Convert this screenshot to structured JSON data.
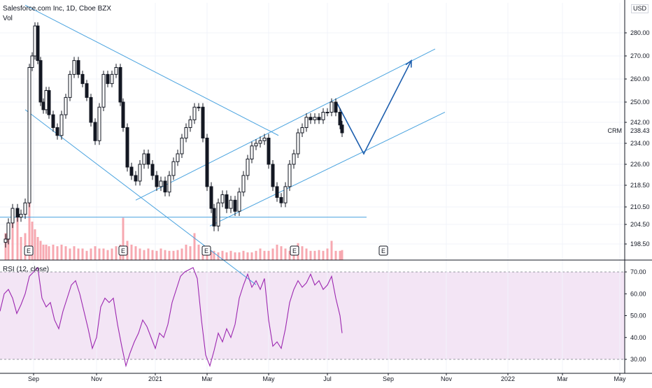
{
  "header": {
    "title": "Salesforce.com Inc, 1D, Cboe BZX",
    "volume_label": "Vol",
    "currency": "USD",
    "symbol": "CRM",
    "last_price": "238.43"
  },
  "rsi": {
    "label": "RSI (12, close)"
  },
  "earnings_marker": "E",
  "colors": {
    "candle": "#131722",
    "trendline": "#4aa3df",
    "projection": "#1e5fae",
    "rsi_line": "#9c27b0",
    "rsi_band": "#f3e5f5",
    "volume": "#f7a8b0"
  },
  "chart_data": [
    {
      "type": "candlestick",
      "title": "Salesforce.com Inc, 1D, Cboe BZX",
      "x_axis": {
        "ticks": [
          "Sep",
          "Nov",
          "2021",
          "Mar",
          "May",
          "Jul",
          "Sep",
          "Nov",
          "2022",
          "Mar",
          "May"
        ]
      },
      "y_axis": {
        "ticks": [
          198.5,
          204.5,
          210.5,
          218.5,
          226.0,
          234.0,
          242.0,
          250.0,
          260.0,
          270.0,
          280.0
        ],
        "tick_labels": [
          "198.50",
          "204.50",
          "210.50",
          "218.50",
          "226.00",
          "234.00",
          "242.00",
          "250.00",
          "260.00",
          "270.00",
          "280.00"
        ],
        "position": "right"
      },
      "closes": [
        {
          "x": 8,
          "y": 200
        },
        {
          "x": 12,
          "y": 205
        },
        {
          "x": 18,
          "y": 210
        },
        {
          "x": 25,
          "y": 207
        },
        {
          "x": 30,
          "y": 208
        },
        {
          "x": 36,
          "y": 212
        },
        {
          "x": 42,
          "y": 265
        },
        {
          "x": 46,
          "y": 270
        },
        {
          "x": 50,
          "y": 283
        },
        {
          "x": 54,
          "y": 268
        },
        {
          "x": 58,
          "y": 250
        },
        {
          "x": 62,
          "y": 247
        },
        {
          "x": 66,
          "y": 255
        },
        {
          "x": 70,
          "y": 245
        },
        {
          "x": 76,
          "y": 240
        },
        {
          "x": 82,
          "y": 237
        },
        {
          "x": 88,
          "y": 245
        },
        {
          "x": 94,
          "y": 252
        },
        {
          "x": 100,
          "y": 262
        },
        {
          "x": 106,
          "y": 268
        },
        {
          "x": 112,
          "y": 262
        },
        {
          "x": 118,
          "y": 258
        },
        {
          "x": 124,
          "y": 252
        },
        {
          "x": 130,
          "y": 242
        },
        {
          "x": 136,
          "y": 235
        },
        {
          "x": 142,
          "y": 248
        },
        {
          "x": 148,
          "y": 262
        },
        {
          "x": 154,
          "y": 258
        },
        {
          "x": 160,
          "y": 262
        },
        {
          "x": 166,
          "y": 265
        },
        {
          "x": 172,
          "y": 250
        },
        {
          "x": 176,
          "y": 240
        },
        {
          "x": 182,
          "y": 225
        },
        {
          "x": 188,
          "y": 222
        },
        {
          "x": 194,
          "y": 220
        },
        {
          "x": 200,
          "y": 226
        },
        {
          "x": 206,
          "y": 230
        },
        {
          "x": 212,
          "y": 226
        },
        {
          "x": 218,
          "y": 222
        },
        {
          "x": 224,
          "y": 218
        },
        {
          "x": 230,
          "y": 220
        },
        {
          "x": 236,
          "y": 216
        },
        {
          "x": 242,
          "y": 222
        },
        {
          "x": 248,
          "y": 227
        },
        {
          "x": 254,
          "y": 230
        },
        {
          "x": 260,
          "y": 236
        },
        {
          "x": 266,
          "y": 240
        },
        {
          "x": 272,
          "y": 243
        },
        {
          "x": 278,
          "y": 248
        },
        {
          "x": 284,
          "y": 248
        },
        {
          "x": 290,
          "y": 236
        },
        {
          "x": 296,
          "y": 218
        },
        {
          "x": 302,
          "y": 210
        },
        {
          "x": 306,
          "y": 204
        },
        {
          "x": 312,
          "y": 212
        },
        {
          "x": 318,
          "y": 215
        },
        {
          "x": 324,
          "y": 210
        },
        {
          "x": 330,
          "y": 213
        },
        {
          "x": 336,
          "y": 209
        },
        {
          "x": 342,
          "y": 216
        },
        {
          "x": 348,
          "y": 222
        },
        {
          "x": 354,
          "y": 228
        },
        {
          "x": 360,
          "y": 233
        },
        {
          "x": 366,
          "y": 234
        },
        {
          "x": 372,
          "y": 235
        },
        {
          "x": 378,
          "y": 236
        },
        {
          "x": 384,
          "y": 226
        },
        {
          "x": 390,
          "y": 218
        },
        {
          "x": 396,
          "y": 214
        },
        {
          "x": 402,
          "y": 212
        },
        {
          "x": 408,
          "y": 218
        },
        {
          "x": 414,
          "y": 226
        },
        {
          "x": 420,
          "y": 230
        },
        {
          "x": 426,
          "y": 238
        },
        {
          "x": 432,
          "y": 240
        },
        {
          "x": 438,
          "y": 244
        },
        {
          "x": 444,
          "y": 243
        },
        {
          "x": 450,
          "y": 244
        },
        {
          "x": 456,
          "y": 243
        },
        {
          "x": 462,
          "y": 246
        },
        {
          "x": 468,
          "y": 246
        },
        {
          "x": 474,
          "y": 250
        },
        {
          "x": 480,
          "y": 246
        },
        {
          "x": 486,
          "y": 241
        },
        {
          "x": 489,
          "y": 238
        }
      ],
      "annotations": [
        {
          "type": "trendline",
          "from": {
            "x": 36,
            "y": 292
          },
          "to": {
            "x": 398,
            "y": 237
          }
        },
        {
          "type": "trendline",
          "from": {
            "x": 36,
            "y": 247
          },
          "to": {
            "x": 366,
            "y": 186
          }
        },
        {
          "type": "trendline",
          "from": {
            "x": 194,
            "y": 213
          },
          "to": {
            "x": 622,
            "y": 273
          }
        },
        {
          "type": "trendline",
          "from": {
            "x": 300,
            "y": 204
          },
          "to": {
            "x": 636,
            "y": 246
          }
        },
        {
          "type": "horizontal",
          "from": {
            "x": 0,
            "y": 207
          },
          "to": {
            "x": 524,
            "y": 207
          }
        },
        {
          "type": "projection",
          "points": [
            {
              "x": 481,
              "y": 250
            },
            {
              "x": 520,
              "y": 230
            },
            {
              "x": 588,
              "y": 268
            }
          ]
        }
      ]
    },
    {
      "type": "bar",
      "title": "Vol",
      "values_relative": [
        0.35,
        0.45,
        0.5,
        0.6,
        0.3,
        0.35,
        0.9,
        0.5,
        0.4,
        0.3,
        0.25,
        0.2,
        0.2,
        0.18,
        0.2,
        0.18,
        0.2,
        0.18,
        0.15,
        0.18,
        0.15,
        0.15,
        0.12,
        0.15,
        0.18,
        0.15,
        0.15,
        0.13,
        0.15,
        0.18,
        0.2,
        0.55,
        0.25,
        0.2,
        0.18,
        0.15,
        0.13,
        0.15,
        0.13,
        0.12,
        0.15,
        0.13,
        0.12,
        0.12,
        0.13,
        0.15,
        0.2,
        0.18,
        0.35,
        0.2,
        0.15,
        0.13,
        0.12,
        0.12,
        0.1,
        0.12,
        0.1,
        0.12,
        0.1,
        0.1,
        0.12,
        0.1,
        0.1,
        0.12,
        0.15,
        0.12,
        0.12,
        0.15,
        0.2,
        0.18,
        0.15,
        0.12,
        0.12,
        0.22,
        0.18,
        0.15,
        0.12,
        0.12,
        0.13,
        0.12,
        0.15,
        0.25,
        0.12,
        0.12,
        0.13
      ]
    },
    {
      "type": "line",
      "title": "RSI (12, close)",
      "y_axis": {
        "ticks": [
          30,
          40,
          50,
          60,
          70
        ],
        "tick_labels": [
          "30.00",
          "40.00",
          "50.00",
          "60.00",
          "70.00"
        ],
        "position": "right"
      },
      "band": [
        30,
        70
      ],
      "series": [
        {
          "values": [
            {
              "x": 0,
              "y": 52
            },
            {
              "x": 6,
              "y": 60
            },
            {
              "x": 12,
              "y": 62
            },
            {
              "x": 18,
              "y": 58
            },
            {
              "x": 24,
              "y": 51
            },
            {
              "x": 30,
              "y": 55
            },
            {
              "x": 36,
              "y": 60
            },
            {
              "x": 42,
              "y": 68
            },
            {
              "x": 48,
              "y": 70
            },
            {
              "x": 54,
              "y": 72
            },
            {
              "x": 60,
              "y": 58
            },
            {
              "x": 66,
              "y": 54
            },
            {
              "x": 72,
              "y": 56
            },
            {
              "x": 78,
              "y": 48
            },
            {
              "x": 84,
              "y": 44
            },
            {
              "x": 90,
              "y": 52
            },
            {
              "x": 96,
              "y": 58
            },
            {
              "x": 102,
              "y": 64
            },
            {
              "x": 108,
              "y": 66
            },
            {
              "x": 114,
              "y": 60
            },
            {
              "x": 120,
              "y": 52
            },
            {
              "x": 126,
              "y": 44
            },
            {
              "x": 132,
              "y": 35
            },
            {
              "x": 138,
              "y": 40
            },
            {
              "x": 144,
              "y": 54
            },
            {
              "x": 150,
              "y": 58
            },
            {
              "x": 156,
              "y": 56
            },
            {
              "x": 162,
              "y": 58
            },
            {
              "x": 168,
              "y": 46
            },
            {
              "x": 174,
              "y": 36
            },
            {
              "x": 180,
              "y": 27
            },
            {
              "x": 186,
              "y": 33
            },
            {
              "x": 192,
              "y": 38
            },
            {
              "x": 198,
              "y": 42
            },
            {
              "x": 204,
              "y": 48
            },
            {
              "x": 210,
              "y": 45
            },
            {
              "x": 216,
              "y": 40
            },
            {
              "x": 222,
              "y": 35
            },
            {
              "x": 228,
              "y": 42
            },
            {
              "x": 234,
              "y": 40
            },
            {
              "x": 240,
              "y": 46
            },
            {
              "x": 246,
              "y": 56
            },
            {
              "x": 252,
              "y": 62
            },
            {
              "x": 258,
              "y": 68
            },
            {
              "x": 264,
              "y": 70
            },
            {
              "x": 270,
              "y": 71
            },
            {
              "x": 276,
              "y": 72
            },
            {
              "x": 282,
              "y": 67
            },
            {
              "x": 288,
              "y": 48
            },
            {
              "x": 294,
              "y": 32
            },
            {
              "x": 300,
              "y": 27
            },
            {
              "x": 306,
              "y": 34
            },
            {
              "x": 312,
              "y": 42
            },
            {
              "x": 318,
              "y": 38
            },
            {
              "x": 324,
              "y": 44
            },
            {
              "x": 330,
              "y": 40
            },
            {
              "x": 336,
              "y": 46
            },
            {
              "x": 342,
              "y": 58
            },
            {
              "x": 348,
              "y": 64
            },
            {
              "x": 354,
              "y": 69
            },
            {
              "x": 360,
              "y": 63
            },
            {
              "x": 366,
              "y": 66
            },
            {
              "x": 372,
              "y": 62
            },
            {
              "x": 378,
              "y": 67
            },
            {
              "x": 384,
              "y": 48
            },
            {
              "x": 390,
              "y": 36
            },
            {
              "x": 396,
              "y": 38
            },
            {
              "x": 402,
              "y": 35
            },
            {
              "x": 408,
              "y": 44
            },
            {
              "x": 414,
              "y": 56
            },
            {
              "x": 420,
              "y": 62
            },
            {
              "x": 426,
              "y": 66
            },
            {
              "x": 432,
              "y": 63
            },
            {
              "x": 438,
              "y": 65
            },
            {
              "x": 444,
              "y": 69
            },
            {
              "x": 450,
              "y": 64
            },
            {
              "x": 456,
              "y": 66
            },
            {
              "x": 462,
              "y": 62
            },
            {
              "x": 468,
              "y": 64
            },
            {
              "x": 474,
              "y": 68
            },
            {
              "x": 480,
              "y": 58
            },
            {
              "x": 486,
              "y": 50
            },
            {
              "x": 489,
              "y": 42
            }
          ]
        }
      ]
    }
  ]
}
